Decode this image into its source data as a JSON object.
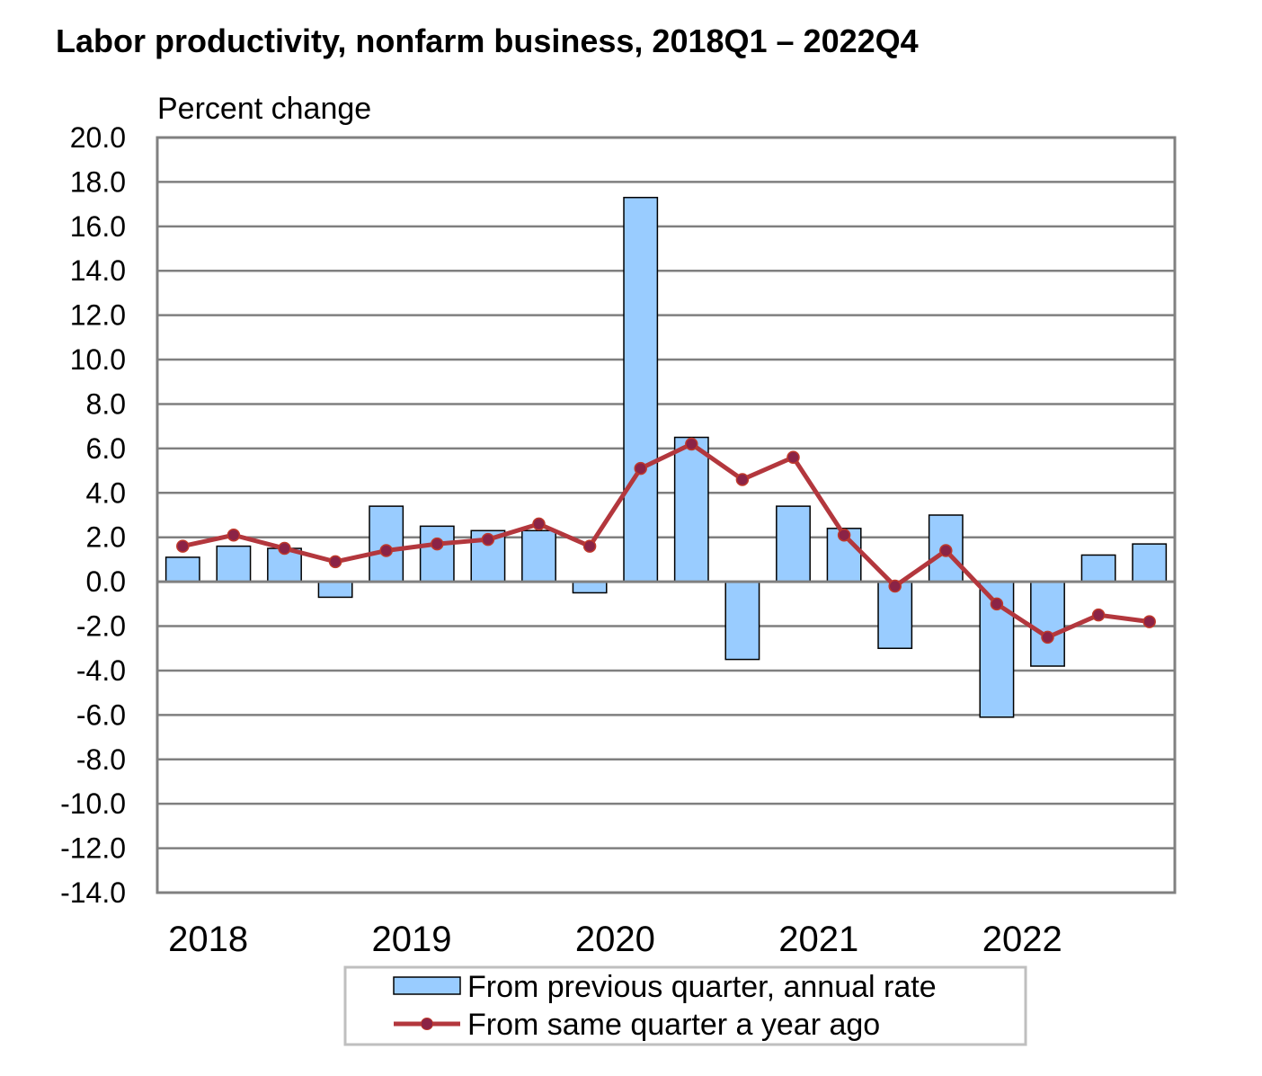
{
  "chart_data": {
    "type": "bar",
    "title": "Labor productivity, nonfarm business, 2018Q1 – 2022Q4",
    "ylabel": "Percent change",
    "xlabel": "",
    "ylim": [
      -14.0,
      20.0
    ],
    "yticks": [
      "20.0",
      "18.0",
      "16.0",
      "14.0",
      "12.0",
      "10.0",
      "8.0",
      "6.0",
      "4.0",
      "2.0",
      "0.0",
      "-2.0",
      "-4.0",
      "-6.0",
      "-8.0",
      "-10.0",
      "-12.0",
      "-14.0"
    ],
    "year_labels": [
      "2018",
      "2019",
      "2020",
      "2021",
      "2022"
    ],
    "quarters": [
      "2018Q1",
      "2018Q2",
      "2018Q3",
      "2018Q4",
      "2019Q1",
      "2019Q2",
      "2019Q3",
      "2019Q4",
      "2020Q1",
      "2020Q2",
      "2020Q3",
      "2020Q4",
      "2021Q1",
      "2021Q2",
      "2021Q3",
      "2021Q4",
      "2022Q1",
      "2022Q2",
      "2022Q3",
      "2022Q4"
    ],
    "grid": true,
    "legend_position": "bottom-center",
    "colors": {
      "bars": "#99ccff",
      "bar_edge": "#000000",
      "line": "#b3373d",
      "grid": "#7f7f7f"
    },
    "series": [
      {
        "name": "From previous quarter, annual rate",
        "type": "bar",
        "values": [
          1.1,
          1.6,
          1.5,
          -0.7,
          3.4,
          2.5,
          2.3,
          2.3,
          -0.5,
          17.3,
          6.5,
          -3.5,
          3.4,
          2.4,
          -3.0,
          3.0,
          -6.1,
          -3.8,
          1.2,
          1.7
        ]
      },
      {
        "name": "From same quarter a year ago",
        "type": "line",
        "values": [
          1.6,
          2.1,
          1.5,
          0.9,
          1.4,
          1.7,
          1.9,
          2.6,
          1.6,
          5.1,
          6.2,
          4.6,
          5.6,
          2.1,
          -0.2,
          1.4,
          -1.0,
          -2.5,
          -1.5,
          -1.8
        ]
      }
    ]
  }
}
